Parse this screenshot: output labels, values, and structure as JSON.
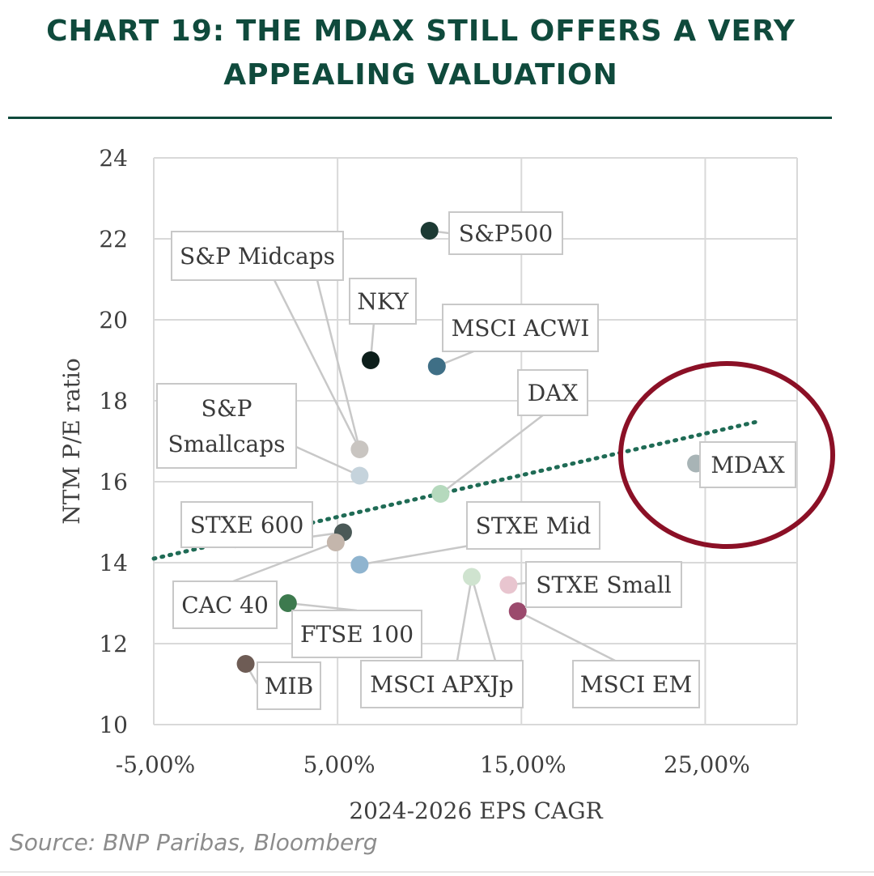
{
  "title": "CHART 19: THE MDAX STILL OFFERS A VERY APPEALING VALUATION",
  "source": "Source: BNP Paribas, Bloomberg",
  "colors": {
    "title": "#0f4a3c",
    "trendline": "#1f6b55",
    "highlight_circle": "#8b1026",
    "grid": "#d9d9d9",
    "axis_text": "#3f3f3f"
  },
  "chart_data": {
    "type": "scatter",
    "title": "CHART 19: THE MDAX STILL OFFERS A VERY APPEALING VALUATION",
    "xlabel": "2024-2026 EPS CAGR",
    "ylabel": "NTM P/E ratio",
    "xlim": [
      -5,
      30
    ],
    "ylim": [
      10,
      24
    ],
    "xticks": [
      -5,
      5,
      15,
      25
    ],
    "xtick_labels": [
      "-5,00%",
      "5,00%",
      "15,00%",
      "25,00%"
    ],
    "yticks": [
      10,
      12,
      14,
      16,
      18,
      20,
      22,
      24
    ],
    "ytick_labels": [
      "10",
      "12",
      "14",
      "16",
      "18",
      "20",
      "22",
      "24"
    ],
    "grid": true,
    "trendline": {
      "style": "dotted",
      "x": [
        -5,
        28
      ],
      "y": [
        14.1,
        17.5
      ]
    },
    "highlight": "MDAX",
    "points": [
      {
        "name": "S&P500",
        "lines": [
          "S&P500"
        ],
        "x": 10.0,
        "y": 22.2,
        "color": "#1c3a33"
      },
      {
        "name": "S&P Midcaps",
        "lines": [
          "S&P Midcaps"
        ],
        "x": 6.2,
        "y": 16.8,
        "color": "#c9c5c1"
      },
      {
        "name": "NKY",
        "lines": [
          "NKY"
        ],
        "x": 6.8,
        "y": 19.0,
        "color": "#0d1f1b"
      },
      {
        "name": "MSCI ACWI",
        "lines": [
          "MSCI ACWI"
        ],
        "x": 10.4,
        "y": 18.85,
        "color": "#3f6f86"
      },
      {
        "name": "DAX",
        "lines": [
          "DAX"
        ],
        "x": 10.6,
        "y": 15.7,
        "color": "#b5d9bd"
      },
      {
        "name": "S&P Smallcaps",
        "lines": [
          "S&P",
          "Smallcaps"
        ],
        "x": 6.2,
        "y": 16.15,
        "color": "#c5d3dc"
      },
      {
        "name": "MDAX",
        "lines": [
          "MDAX"
        ],
        "x": 24.5,
        "y": 16.45,
        "color": "#a8b4b6"
      },
      {
        "name": "STXE 600",
        "lines": [
          "STXE 600"
        ],
        "x": 5.3,
        "y": 14.75,
        "color": "#4a5957"
      },
      {
        "name": "CAC 40",
        "lines": [
          "CAC 40"
        ],
        "x": 4.9,
        "y": 14.5,
        "color": "#c4b6ac"
      },
      {
        "name": "STXE Mid",
        "lines": [
          "STXE Mid"
        ],
        "x": 6.2,
        "y": 13.95,
        "color": "#8fb4cf"
      },
      {
        "name": "MSCI APXJp",
        "lines": [
          "MSCI APXJp"
        ],
        "x": 12.3,
        "y": 13.65,
        "color": "#cfe3cf"
      },
      {
        "name": "STXE Small",
        "lines": [
          "STXE Small"
        ],
        "x": 14.3,
        "y": 13.45,
        "color": "#e8c5cf"
      },
      {
        "name": "MSCI EM",
        "lines": [
          "MSCI EM"
        ],
        "x": 14.8,
        "y": 12.8,
        "color": "#9b4a6d"
      },
      {
        "name": "FTSE 100",
        "lines": [
          "FTSE 100"
        ],
        "x": 2.3,
        "y": 13.0,
        "color": "#3d7a4e"
      },
      {
        "name": "MIB",
        "lines": [
          "MIB"
        ],
        "x": 0.0,
        "y": 11.5,
        "color": "#6e5c55"
      }
    ]
  }
}
